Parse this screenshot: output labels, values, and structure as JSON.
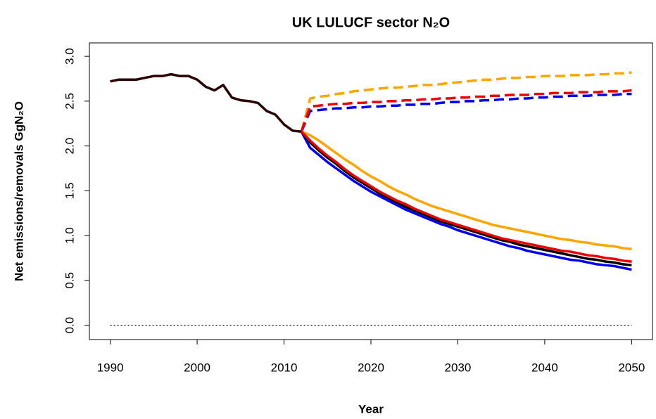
{
  "chart_data": {
    "type": "line",
    "title": "UK LULUCF sector N₂O",
    "xlabel": "Year",
    "ylabel": "Net emissions/removals GgN₂O",
    "xlim": [
      1987.6,
      2052.4
    ],
    "ylim": [
      -0.16,
      3.15
    ],
    "xticks": [
      1990,
      2000,
      2010,
      2020,
      2030,
      2040,
      2050
    ],
    "yticks": [
      {
        "value": 0,
        "label": "0.0"
      },
      {
        "value": 0.5,
        "label": "0.5"
      },
      {
        "value": 1,
        "label": "1.0"
      },
      {
        "value": 1.5,
        "label": "1.5"
      },
      {
        "value": 2,
        "label": "2.0"
      },
      {
        "value": 2.5,
        "label": "2.5"
      },
      {
        "value": 3,
        "label": "3.0"
      }
    ],
    "hline": {
      "value": 0,
      "color": "#000000",
      "dotted": true
    },
    "series": [
      {
        "color": "#ffa500",
        "dashed": true,
        "x": [
          2012,
          2013,
          2014,
          2015,
          2016,
          2017,
          2018,
          2019,
          2020,
          2021,
          2022,
          2023,
          2024,
          2025,
          2026,
          2027,
          2028,
          2029,
          2030,
          2031,
          2032,
          2033,
          2034,
          2035,
          2036,
          2037,
          2038,
          2039,
          2040,
          2041,
          2042,
          2043,
          2044,
          2045,
          2046,
          2047,
          2048,
          2049,
          2050
        ],
        "values": [
          2.16,
          2.53,
          2.55,
          2.56,
          2.58,
          2.59,
          2.61,
          2.62,
          2.63,
          2.64,
          2.65,
          2.65,
          2.66,
          2.67,
          2.68,
          2.68,
          2.69,
          2.7,
          2.71,
          2.72,
          2.73,
          2.74,
          2.74,
          2.75,
          2.76,
          2.76,
          2.77,
          2.77,
          2.78,
          2.78,
          2.78,
          2.79,
          2.79,
          2.79,
          2.8,
          2.8,
          2.81,
          2.81,
          2.82
        ]
      },
      {
        "color": "#0000ee",
        "dashed": true,
        "x": [
          2012,
          2013,
          2014,
          2015,
          2016,
          2017,
          2018,
          2019,
          2020,
          2021,
          2022,
          2023,
          2024,
          2025,
          2026,
          2027,
          2028,
          2029,
          2030,
          2031,
          2032,
          2033,
          2034,
          2035,
          2036,
          2037,
          2038,
          2039,
          2040,
          2041,
          2042,
          2043,
          2044,
          2045,
          2046,
          2047,
          2048,
          2049,
          2050
        ],
        "values": [
          2.16,
          2.39,
          2.4,
          2.41,
          2.42,
          2.42,
          2.43,
          2.43,
          2.44,
          2.44,
          2.45,
          2.45,
          2.46,
          2.46,
          2.47,
          2.47,
          2.48,
          2.49,
          2.49,
          2.5,
          2.5,
          2.51,
          2.51,
          2.52,
          2.52,
          2.53,
          2.53,
          2.54,
          2.54,
          2.55,
          2.55,
          2.56,
          2.56,
          2.56,
          2.57,
          2.57,
          2.57,
          2.58,
          2.58
        ]
      },
      {
        "color": "#ee0000",
        "dashed": true,
        "x": [
          2012,
          2013,
          2014,
          2015,
          2016,
          2017,
          2018,
          2019,
          2020,
          2021,
          2022,
          2023,
          2024,
          2025,
          2026,
          2027,
          2028,
          2029,
          2030,
          2031,
          2032,
          2033,
          2034,
          2035,
          2036,
          2037,
          2038,
          2039,
          2040,
          2041,
          2042,
          2043,
          2044,
          2045,
          2046,
          2047,
          2048,
          2049,
          2050
        ],
        "values": [
          2.16,
          2.44,
          2.45,
          2.46,
          2.47,
          2.47,
          2.48,
          2.48,
          2.49,
          2.49,
          2.5,
          2.5,
          2.51,
          2.51,
          2.52,
          2.52,
          2.53,
          2.53,
          2.54,
          2.54,
          2.55,
          2.55,
          2.56,
          2.56,
          2.57,
          2.57,
          2.57,
          2.58,
          2.58,
          2.59,
          2.59,
          2.59,
          2.6,
          2.6,
          2.6,
          2.61,
          2.61,
          2.61,
          2.62
        ]
      },
      {
        "color": "#ffa500",
        "dashed": false,
        "x": [
          2012,
          2013,
          2014,
          2015,
          2016,
          2017,
          2018,
          2019,
          2020,
          2021,
          2022,
          2023,
          2024,
          2025,
          2026,
          2027,
          2028,
          2029,
          2030,
          2031,
          2032,
          2033,
          2034,
          2035,
          2036,
          2037,
          2038,
          2039,
          2040,
          2041,
          2042,
          2043,
          2044,
          2045,
          2046,
          2047,
          2048,
          2049,
          2050
        ],
        "values": [
          2.16,
          2.12,
          2.06,
          1.99,
          1.92,
          1.85,
          1.79,
          1.72,
          1.66,
          1.61,
          1.55,
          1.5,
          1.46,
          1.41,
          1.37,
          1.33,
          1.3,
          1.27,
          1.24,
          1.21,
          1.18,
          1.15,
          1.12,
          1.1,
          1.08,
          1.06,
          1.04,
          1.02,
          1.0,
          0.98,
          0.96,
          0.95,
          0.93,
          0.92,
          0.9,
          0.89,
          0.88,
          0.86,
          0.85
        ]
      },
      {
        "color": "#0000ee",
        "dashed": false,
        "x": [
          2012,
          2013,
          2014,
          2015,
          2016,
          2017,
          2018,
          2019,
          2020,
          2021,
          2022,
          2023,
          2024,
          2025,
          2026,
          2027,
          2028,
          2029,
          2030,
          2031,
          2032,
          2033,
          2034,
          2035,
          2036,
          2037,
          2038,
          2039,
          2040,
          2041,
          2042,
          2043,
          2044,
          2045,
          2046,
          2047,
          2048,
          2049,
          2050
        ],
        "values": [
          2.16,
          1.98,
          1.9,
          1.82,
          1.75,
          1.68,
          1.61,
          1.55,
          1.49,
          1.44,
          1.39,
          1.34,
          1.29,
          1.25,
          1.21,
          1.17,
          1.13,
          1.1,
          1.06,
          1.03,
          1.0,
          0.97,
          0.94,
          0.91,
          0.88,
          0.86,
          0.83,
          0.81,
          0.79,
          0.77,
          0.75,
          0.73,
          0.72,
          0.7,
          0.68,
          0.67,
          0.66,
          0.64,
          0.62
        ]
      },
      {
        "color": "#000000",
        "dashed": false,
        "x": [
          2012,
          2013,
          2014,
          2015,
          2016,
          2017,
          2018,
          2019,
          2020,
          2021,
          2022,
          2023,
          2024,
          2025,
          2026,
          2027,
          2028,
          2029,
          2030,
          2031,
          2032,
          2033,
          2034,
          2035,
          2036,
          2037,
          2038,
          2039,
          2040,
          2041,
          2042,
          2043,
          2044,
          2045,
          2046,
          2047,
          2048,
          2049,
          2050
        ],
        "values": [
          2.16,
          2.04,
          1.95,
          1.87,
          1.8,
          1.72,
          1.65,
          1.59,
          1.53,
          1.47,
          1.42,
          1.37,
          1.32,
          1.28,
          1.24,
          1.2,
          1.16,
          1.13,
          1.1,
          1.07,
          1.04,
          1.01,
          0.98,
          0.95,
          0.93,
          0.9,
          0.88,
          0.86,
          0.84,
          0.82,
          0.8,
          0.78,
          0.76,
          0.74,
          0.73,
          0.71,
          0.7,
          0.68,
          0.67
        ]
      },
      {
        "color": "#ee0000",
        "dashed": false,
        "x": [
          2012,
          2013,
          2014,
          2015,
          2016,
          2017,
          2018,
          2019,
          2020,
          2021,
          2022,
          2023,
          2024,
          2025,
          2026,
          2027,
          2028,
          2029,
          2030,
          2031,
          2032,
          2033,
          2034,
          2035,
          2036,
          2037,
          2038,
          2039,
          2040,
          2041,
          2042,
          2043,
          2044,
          2045,
          2046,
          2047,
          2048,
          2049,
          2050
        ],
        "values": [
          2.16,
          2.06,
          1.97,
          1.89,
          1.82,
          1.74,
          1.67,
          1.61,
          1.55,
          1.49,
          1.44,
          1.39,
          1.35,
          1.3,
          1.26,
          1.22,
          1.18,
          1.15,
          1.12,
          1.09,
          1.06,
          1.03,
          1.0,
          0.97,
          0.95,
          0.93,
          0.91,
          0.89,
          0.87,
          0.85,
          0.83,
          0.82,
          0.8,
          0.78,
          0.77,
          0.75,
          0.74,
          0.72,
          0.71
        ]
      },
      {
        "color": "#2a0000",
        "dashed": false,
        "x": [
          1990,
          1991,
          1992,
          1993,
          1994,
          1995,
          1996,
          1997,
          1998,
          1999,
          2000,
          2001,
          2002,
          2003,
          2004,
          2005,
          2006,
          2007,
          2008,
          2009,
          2010,
          2011,
          2012
        ],
        "values": [
          2.72,
          2.74,
          2.74,
          2.74,
          2.76,
          2.78,
          2.78,
          2.8,
          2.78,
          2.78,
          2.74,
          2.66,
          2.62,
          2.68,
          2.54,
          2.51,
          2.5,
          2.48,
          2.39,
          2.35,
          2.24,
          2.17,
          2.16
        ]
      }
    ]
  }
}
